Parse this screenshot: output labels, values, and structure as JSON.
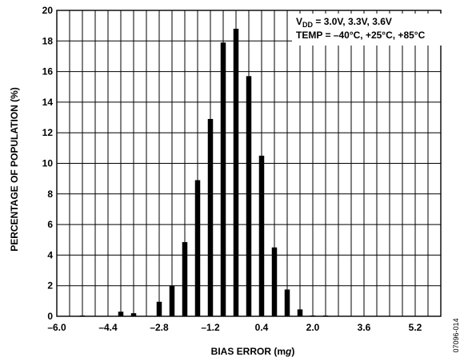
{
  "chart_data": {
    "type": "bar",
    "title": "",
    "xlabel_prefix": "BIAS ERROR (m",
    "xlabel_unit": "g",
    "xlabel_suffix": ")",
    "ylabel": "PERCENTAGE OF POPULATION (%)",
    "xlim": [
      -6.0,
      6.0
    ],
    "ylim": [
      0,
      20
    ],
    "x_ticks": [
      -6.0,
      -4.4,
      -2.8,
      -1.2,
      0.4,
      2.0,
      3.6,
      5.2
    ],
    "x_tick_labels": [
      "–6.0",
      "–4.4",
      "–2.8",
      "–1.2",
      "0.4",
      "2.0",
      "3.6",
      "5.2"
    ],
    "y_ticks": [
      0,
      2,
      4,
      6,
      8,
      10,
      12,
      14,
      16,
      18,
      20
    ],
    "y_tick_labels": [
      "0",
      "2",
      "4",
      "6",
      "8",
      "10",
      "12",
      "14",
      "16",
      "18",
      "20"
    ],
    "grid": true,
    "legend_position": "top-right",
    "bins": [
      -5.2,
      -4.0,
      -3.6,
      -2.8,
      -2.4,
      -2.0,
      -1.6,
      -1.2,
      -0.8,
      -0.4,
      0.0,
      0.4,
      0.8,
      1.2,
      1.6,
      2.0,
      2.4
    ],
    "values": [
      0.05,
      0.3,
      0.2,
      0.95,
      2.0,
      4.85,
      8.9,
      12.9,
      17.9,
      18.8,
      15.7,
      10.5,
      4.5,
      1.75,
      0.45,
      0.05,
      0.05
    ]
  },
  "annotation": {
    "line1_prefix": "V",
    "line1_subscript": "DD",
    "line1_rest": " = 3.0V, 3.3V, 3.6V",
    "line2": "TEMP = –40°C, +25°C, +85°C"
  },
  "figure_id": "07096-014"
}
